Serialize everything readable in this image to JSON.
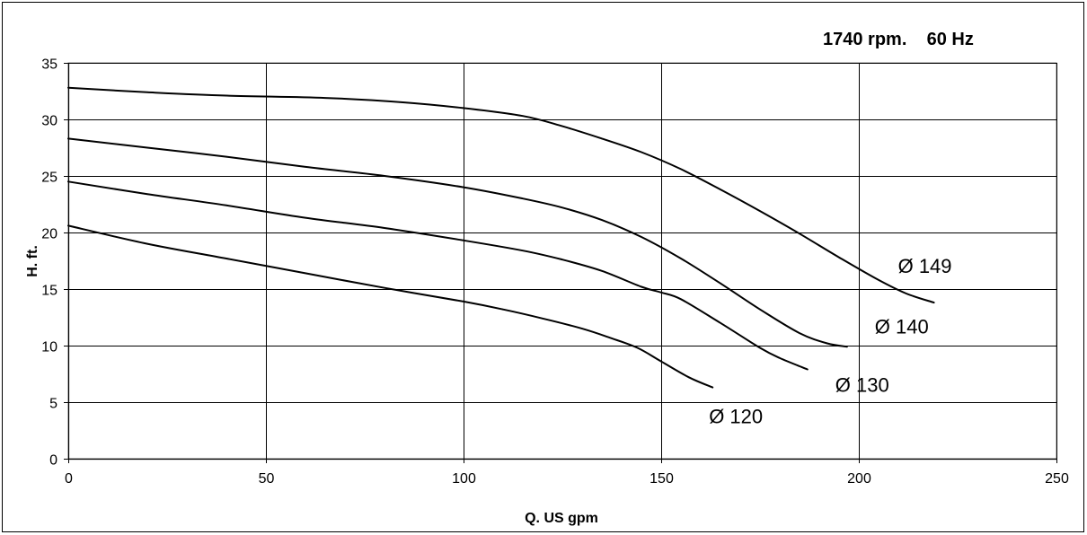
{
  "chart_data": {
    "type": "line",
    "title": "",
    "subtitle": "1740 rpm.    60 Hz",
    "xlabel": "Q.  US gpm",
    "ylabel": "H.  ft.",
    "xlim": [
      0,
      250
    ],
    "ylim": [
      0,
      35
    ],
    "x_ticks": [
      0,
      50,
      100,
      150,
      200,
      250
    ],
    "y_ticks": [
      0,
      5,
      10,
      15,
      20,
      25,
      30,
      35
    ],
    "grid": true,
    "legend": "none",
    "line_color": "#000000",
    "series": [
      {
        "name": "Ø 149",
        "x": [
          0,
          20,
          40,
          65,
          85,
          100,
          115,
          125,
          135,
          145,
          155,
          165,
          175,
          185,
          195,
          205,
          212,
          219
        ],
        "y": [
          32.8,
          32.4,
          32.1,
          31.9,
          31.5,
          31.0,
          30.3,
          29.4,
          28.3,
          27.1,
          25.6,
          23.8,
          21.9,
          19.9,
          17.8,
          15.8,
          14.6,
          13.8
        ]
      },
      {
        "name": "Ø 140",
        "x": [
          0,
          20,
          40,
          60,
          80,
          100,
          115,
          125,
          135,
          145,
          155,
          165,
          175,
          185,
          192,
          197
        ],
        "y": [
          28.3,
          27.5,
          26.7,
          25.8,
          25.0,
          24.0,
          23.0,
          22.2,
          21.1,
          19.6,
          17.7,
          15.5,
          13.2,
          11.1,
          10.2,
          9.9
        ]
      },
      {
        "name": "Ø 130",
        "x": [
          0,
          20,
          40,
          60,
          80,
          100,
          115,
          125,
          135,
          145,
          150,
          155,
          165,
          175,
          180,
          187
        ],
        "y": [
          24.5,
          23.4,
          22.4,
          21.3,
          20.4,
          19.3,
          18.4,
          17.6,
          16.6,
          15.2,
          14.7,
          14.1,
          12.0,
          9.8,
          8.9,
          7.9
        ]
      },
      {
        "name": "Ø 120",
        "x": [
          0,
          20,
          40,
          60,
          80,
          100,
          110,
          120,
          130,
          137,
          144,
          150,
          157,
          163
        ],
        "y": [
          20.6,
          19.0,
          17.7,
          16.4,
          15.1,
          13.9,
          13.2,
          12.4,
          11.5,
          10.7,
          9.8,
          8.6,
          7.2,
          6.3
        ]
      }
    ]
  }
}
